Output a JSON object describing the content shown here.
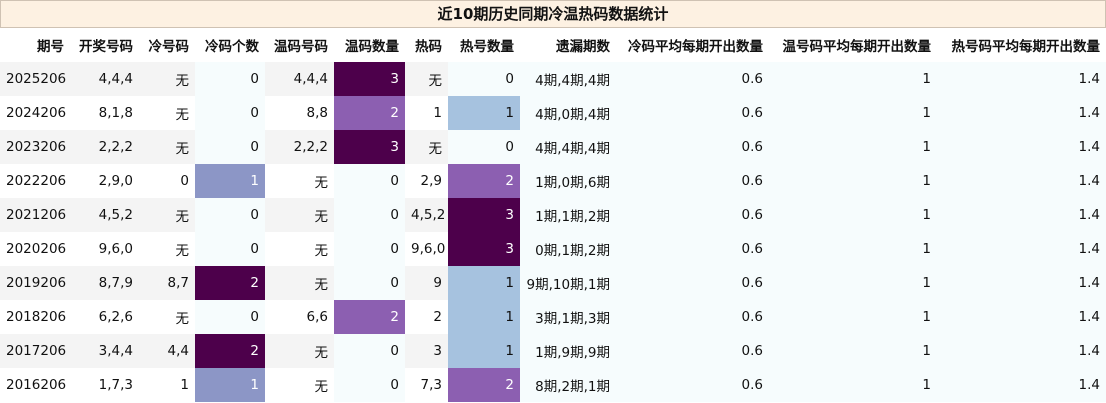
{
  "title": "近10期历史同期冷温热码数据统计",
  "columns": [
    "期号",
    "开奖号码",
    "冷号码",
    "冷码个数",
    "温码号码",
    "温码数量",
    "热码",
    "热号数量",
    "遗漏期数",
    "冷码平均每期开出数量",
    "温号码平均每期开出数量",
    "热号码平均每期开出数量"
  ],
  "colors": {
    "level3": "#4d004b",
    "level2": "#8c5fb1",
    "level1_cold": "#8c96c6",
    "level1_hot": "#a6c2df",
    "pale": "#f6fcfd",
    "row_alt": "#f4f4f4"
  },
  "rows": [
    [
      "2025206",
      "4,4,4",
      "无",
      "0",
      "4,4,4",
      "3",
      "无",
      "0",
      "4期,4期,4期",
      "0.6",
      "1",
      "1.4"
    ],
    [
      "2024206",
      "8,1,8",
      "无",
      "0",
      "8,8",
      "2",
      "1",
      "1",
      "4期,0期,4期",
      "0.6",
      "1",
      "1.4"
    ],
    [
      "2023206",
      "2,2,2",
      "无",
      "0",
      "2,2,2",
      "3",
      "无",
      "0",
      "4期,4期,4期",
      "0.6",
      "1",
      "1.4"
    ],
    [
      "2022206",
      "2,9,0",
      "0",
      "1",
      "无",
      "0",
      "2,9",
      "2",
      "1期,0期,6期",
      "0.6",
      "1",
      "1.4"
    ],
    [
      "2021206",
      "4,5,2",
      "无",
      "0",
      "无",
      "0",
      "4,5,2",
      "3",
      "1期,1期,2期",
      "0.6",
      "1",
      "1.4"
    ],
    [
      "2020206",
      "9,6,0",
      "无",
      "0",
      "无",
      "0",
      "9,6,0",
      "3",
      "0期,1期,2期",
      "0.6",
      "1",
      "1.4"
    ],
    [
      "2019206",
      "8,7,9",
      "8,7",
      "2",
      "无",
      "0",
      "9",
      "1",
      "9期,10期,1期",
      "0.6",
      "1",
      "1.4"
    ],
    [
      "2018206",
      "6,2,6",
      "无",
      "0",
      "6,6",
      "2",
      "2",
      "1",
      "3期,1期,3期",
      "0.6",
      "1",
      "1.4"
    ],
    [
      "2017206",
      "3,4,4",
      "4,4",
      "2",
      "无",
      "0",
      "3",
      "1",
      "1期,9期,9期",
      "0.6",
      "1",
      "1.4"
    ],
    [
      "2016206",
      "1,7,3",
      "1",
      "1",
      "无",
      "0",
      "7,3",
      "2",
      "8期,2期,1期",
      "0.6",
      "1",
      "1.4"
    ]
  ]
}
